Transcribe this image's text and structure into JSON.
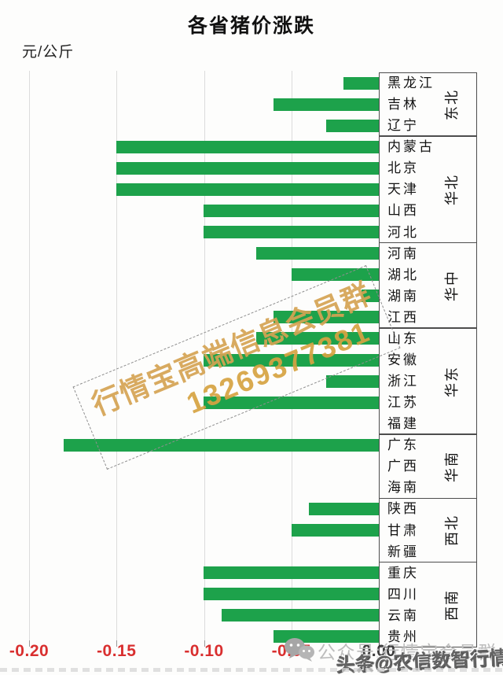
{
  "title": "各省猪价涨跌",
  "unit_label": "元/公斤",
  "watermark": {
    "line1": "行情宝高端信息会员群",
    "line2": "13269377381"
  },
  "footer": {
    "wechat_icon": "wechat-icon",
    "gray_text": "公众号:行情宝会员群",
    "dark_watermark": "头条@农信数智行情宝"
  },
  "colors": {
    "bar_green": "#1da24b",
    "negative_label_red": "#d92f2f",
    "zero_label_dark": "#3d3d3d",
    "grid_gray": "#dcdcdc",
    "panel_border": "#4d4d4d",
    "watermark_gold": "#d5a453"
  },
  "x_axis": {
    "ticks": [
      {
        "label": "-0.20",
        "value": -0.2
      },
      {
        "label": "-0.15",
        "value": -0.15
      },
      {
        "label": "-0.10",
        "value": -0.1
      },
      {
        "label": "-0.05",
        "value": -0.05
      },
      {
        "label": "0.00",
        "value": 0.0
      }
    ]
  },
  "chart_data": {
    "type": "bar",
    "orientation": "horizontal",
    "title": "各省猪价涨跌",
    "xlabel": "元/公斤",
    "xlim": [
      -0.2,
      0.0
    ],
    "grid": true,
    "groups": [
      {
        "region": "东北",
        "provinces": [
          {
            "name": "黑龙江",
            "value": -0.02
          },
          {
            "name": "吉林",
            "value": -0.06
          },
          {
            "name": "辽宁",
            "value": -0.03
          }
        ]
      },
      {
        "region": "华北",
        "provinces": [
          {
            "name": "内蒙古",
            "value": -0.15
          },
          {
            "name": "北京",
            "value": -0.15
          },
          {
            "name": "天津",
            "value": -0.15
          },
          {
            "name": "山西",
            "value": -0.1
          },
          {
            "name": "河北",
            "value": -0.1
          }
        ]
      },
      {
        "region": "华中",
        "provinces": [
          {
            "name": "河南",
            "value": -0.07
          },
          {
            "name": "湖北",
            "value": -0.05
          },
          {
            "name": "湖南",
            "value": -0.01
          },
          {
            "name": "江西",
            "value": -0.06
          }
        ]
      },
      {
        "region": "华东",
        "provinces": [
          {
            "name": "山东",
            "value": -0.07
          },
          {
            "name": "安徽",
            "value": -0.1
          },
          {
            "name": "浙江",
            "value": -0.03
          },
          {
            "name": "江苏",
            "value": -0.1
          },
          {
            "name": "福建",
            "value": 0.0
          }
        ]
      },
      {
        "region": "华南",
        "provinces": [
          {
            "name": "广东",
            "value": -0.18
          },
          {
            "name": "广西",
            "value": 0.0
          },
          {
            "name": "海南",
            "value": 0.0
          }
        ]
      },
      {
        "region": "西北",
        "provinces": [
          {
            "name": "陕西",
            "value": -0.04
          },
          {
            "name": "甘肃",
            "value": -0.05
          },
          {
            "name": "新疆",
            "value": 0.0
          }
        ]
      },
      {
        "region": "西南",
        "provinces": [
          {
            "name": "重庆",
            "value": -0.1
          },
          {
            "name": "四川",
            "value": -0.1
          },
          {
            "name": "云南",
            "value": -0.09
          },
          {
            "name": "贵州",
            "value": -0.06
          }
        ]
      }
    ]
  }
}
